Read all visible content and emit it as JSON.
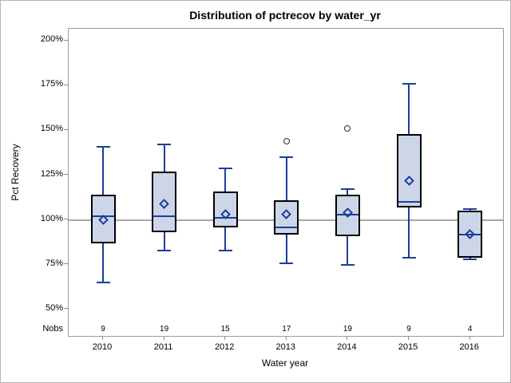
{
  "page": {
    "background": "#ffffff",
    "border_color": "#b6b6b6"
  },
  "chart_data": {
    "type": "boxplot",
    "title": "Distribution of pctrecov by water_yr",
    "xlabel": "Water year",
    "ylabel": "Pct Recovery",
    "nobs_label": "Nobs",
    "categories": [
      "2010",
      "2011",
      "2012",
      "2013",
      "2014",
      "2015",
      "2016"
    ],
    "nobs": [
      9,
      19,
      15,
      17,
      19,
      9,
      4
    ],
    "yticks": [
      {
        "value": 200,
        "label": "200%"
      },
      {
        "value": 175,
        "label": "175%"
      },
      {
        "value": 150,
        "label": "150%"
      },
      {
        "value": 125,
        "label": "125%"
      },
      {
        "value": 100,
        "label": "100%"
      },
      {
        "value": 75,
        "label": "75%"
      },
      {
        "value": 50,
        "label": "50%"
      }
    ],
    "ylim": [
      35.3,
      206.7
    ],
    "reference_line": 100,
    "grid": false,
    "legend": "none",
    "series": [
      {
        "category": "2010",
        "n": 9,
        "whisker_low": 65,
        "q1": 87,
        "median": 102,
        "q3": 114,
        "whisker_high": 141,
        "mean": 100,
        "outliers": []
      },
      {
        "category": "2011",
        "n": 19,
        "whisker_low": 83,
        "q1": 93,
        "median": 102,
        "q3": 127,
        "whisker_high": 142,
        "mean": 109,
        "outliers": []
      },
      {
        "category": "2012",
        "n": 15,
        "whisker_low": 83,
        "q1": 96,
        "median": 101,
        "q3": 116,
        "whisker_high": 129,
        "mean": 103,
        "outliers": []
      },
      {
        "category": "2013",
        "n": 17,
        "whisker_low": 76,
        "q1": 92,
        "median": 96,
        "q3": 111,
        "whisker_high": 135,
        "mean": 103,
        "outliers": [
          144
        ]
      },
      {
        "category": "2014",
        "n": 19,
        "whisker_low": 75,
        "q1": 91,
        "median": 103,
        "q3": 114,
        "whisker_high": 117,
        "mean": 104,
        "outliers": [
          151
        ]
      },
      {
        "category": "2015",
        "n": 9,
        "whisker_low": 79,
        "q1": 107,
        "median": 110,
        "q3": 148,
        "whisker_high": 176,
        "mean": 122,
        "outliers": []
      },
      {
        "category": "2016",
        "n": 4,
        "whisker_low": 78,
        "q1": 79,
        "median": 92,
        "q3": 105,
        "whisker_high": 106,
        "mean": 92,
        "outliers": []
      }
    ],
    "colors": {
      "box_fill": "#ccd6e8",
      "box_border": "#000000",
      "line_blue": "#1b3e99",
      "reference_line": "#a8a8a8",
      "frame": "#9b9b9b",
      "tick": "#8c8c8c",
      "text": "#000000"
    }
  }
}
